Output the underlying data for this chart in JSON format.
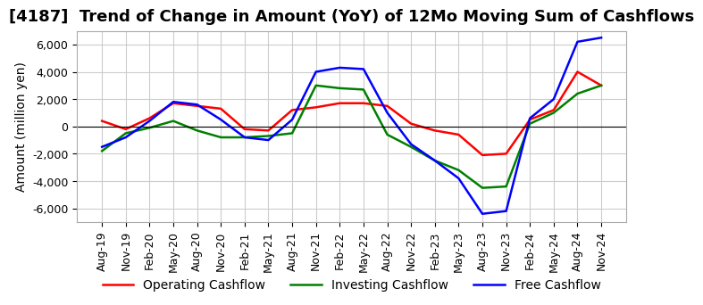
{
  "title": "[4187]  Trend of Change in Amount (YoY) of 12Mo Moving Sum of Cashflows",
  "ylabel": "Amount (million yen)",
  "ylim": [
    -7000,
    7000
  ],
  "yticks": [
    -6000,
    -4000,
    -2000,
    0,
    2000,
    4000,
    6000
  ],
  "x_labels": [
    "Aug-19",
    "Nov-19",
    "Feb-20",
    "May-20",
    "Aug-20",
    "Nov-20",
    "Feb-21",
    "May-21",
    "Aug-21",
    "Nov-21",
    "Feb-22",
    "May-22",
    "Aug-22",
    "Nov-22",
    "Feb-23",
    "May-23",
    "Aug-23",
    "Nov-23",
    "Feb-24",
    "May-24",
    "Aug-24",
    "Nov-24"
  ],
  "operating": [
    400,
    -200,
    600,
    1700,
    1500,
    1300,
    -200,
    -300,
    1200,
    1400,
    1700,
    1700,
    1500,
    200,
    -300,
    -600,
    -2100,
    -2000,
    500,
    1200,
    4000,
    3000
  ],
  "investing": [
    -1800,
    -500,
    -100,
    400,
    -300,
    -800,
    -800,
    -700,
    -500,
    3000,
    2800,
    2700,
    -600,
    -1500,
    -2500,
    -3200,
    -4500,
    -4400,
    200,
    1000,
    2400,
    3000
  ],
  "free": [
    -1500,
    -800,
    400,
    1800,
    1600,
    500,
    -800,
    -1000,
    500,
    4000,
    4300,
    4200,
    1000,
    -1300,
    -2500,
    -3800,
    -6400,
    -6200,
    600,
    2000,
    6200,
    6500
  ],
  "op_color": "#ff0000",
  "inv_color": "#008000",
  "free_color": "#0000ff",
  "background_color": "#ffffff",
  "grid_color": "#cccccc",
  "title_fontsize": 13,
  "label_fontsize": 10,
  "tick_fontsize": 9
}
